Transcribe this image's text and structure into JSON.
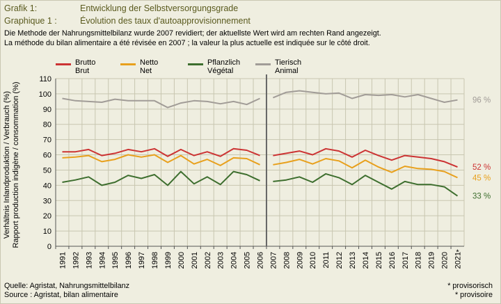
{
  "header": {
    "line1_label": "Grafik 1:",
    "line1_text": "Entwicklung der Selbstversorgungsgrade",
    "line2_label": "Graphique 1 :",
    "line2_text": "Évolution des taux d'autoapprovisionnement"
  },
  "description": {
    "de": "Die Methode der Nahrungsmittelbilanz wurde 2007 revidiert; der aktuellste Wert wird am rechten Rand angezeigt.",
    "fr": "La méthode du bilan alimentaire a été révisée en 2007 ; la valeur la plus actuelle est indiquée sur le côté droit."
  },
  "footer": {
    "source_de": "Quelle: Agristat, Nahrungsmittelbilanz",
    "source_fr": "Source : Agristat, bilan alimentaire",
    "note_de": "* provisorisch",
    "note_fr": "* provisoire"
  },
  "chart_data": {
    "type": "line",
    "ylabel_de": "Verhältnis Inlandproduktion / Verbrauch (%)",
    "ylabel_fr": "Rapport production indigène / consommation (%)",
    "ylim": [
      0,
      110
    ],
    "yticks": [
      "0",
      "10",
      "20",
      "30",
      "40",
      "50",
      "60",
      "70",
      "80",
      "90",
      "100",
      "110"
    ],
    "grid": true,
    "legend_position": "top",
    "break_between": [
      "2006",
      "2007"
    ],
    "x": [
      "1991",
      "1992",
      "1993",
      "1994",
      "1995",
      "1996",
      "1997",
      "1998",
      "1999",
      "2000",
      "2001",
      "2002",
      "2003",
      "2004",
      "2005",
      "2006",
      "2007",
      "2008",
      "2009",
      "2010",
      "2011",
      "2012",
      "2013",
      "2014",
      "2015",
      "2016",
      "2017",
      "2018",
      "2019",
      "2020",
      "2021"
    ],
    "provisional_mark": "*",
    "series": [
      {
        "name_de": "Brutto",
        "name_fr": "Brut",
        "color": "#cc3333",
        "end_label": "52 %",
        "values": [
          62,
          62,
          63.5,
          59.5,
          61,
          63.5,
          62,
          64,
          59,
          63.5,
          59.5,
          62,
          59,
          64,
          63,
          59.5,
          59.5,
          61,
          62.5,
          60,
          64,
          62.5,
          58.5,
          63,
          59.5,
          56.5,
          59.5,
          58.5,
          57.5,
          55.5,
          52
        ]
      },
      {
        "name_de": "Netto",
        "name_fr": "Net",
        "color": "#e8a01c",
        "end_label": "45 %",
        "values": [
          58,
          58.5,
          59.5,
          55.5,
          57,
          60,
          58.5,
          60,
          55,
          59.5,
          54,
          57,
          53,
          58,
          57.5,
          53.5,
          53.5,
          55,
          57,
          54,
          57.5,
          56,
          51.5,
          56.5,
          52,
          48.5,
          52.5,
          51,
          50.5,
          49,
          45
        ]
      },
      {
        "name_de": "Pflanzlich",
        "name_fr": "Végétal",
        "color": "#3d6e2e",
        "end_label": "33 %",
        "values": [
          42,
          43.5,
          45.5,
          40,
          42,
          46.5,
          44.5,
          47,
          40,
          49,
          41,
          45.5,
          40.5,
          49,
          47,
          43,
          42.5,
          43.5,
          45.5,
          42,
          47.5,
          45,
          40.5,
          46.5,
          42,
          37.5,
          42.5,
          40.5,
          40.5,
          39,
          33
        ]
      },
      {
        "name_de": "Tierisch",
        "name_fr": "Animal",
        "color": "#a19c97",
        "end_label": "96 %",
        "values": [
          97,
          95.5,
          95,
          94.5,
          96.5,
          95.5,
          95.5,
          95.5,
          91,
          94,
          95.5,
          95,
          93.5,
          95,
          93,
          97,
          97.5,
          101,
          102,
          101,
          100,
          100.5,
          97,
          99.5,
          99,
          99.5,
          98,
          99.5,
          97,
          94.5,
          96
        ]
      }
    ]
  }
}
